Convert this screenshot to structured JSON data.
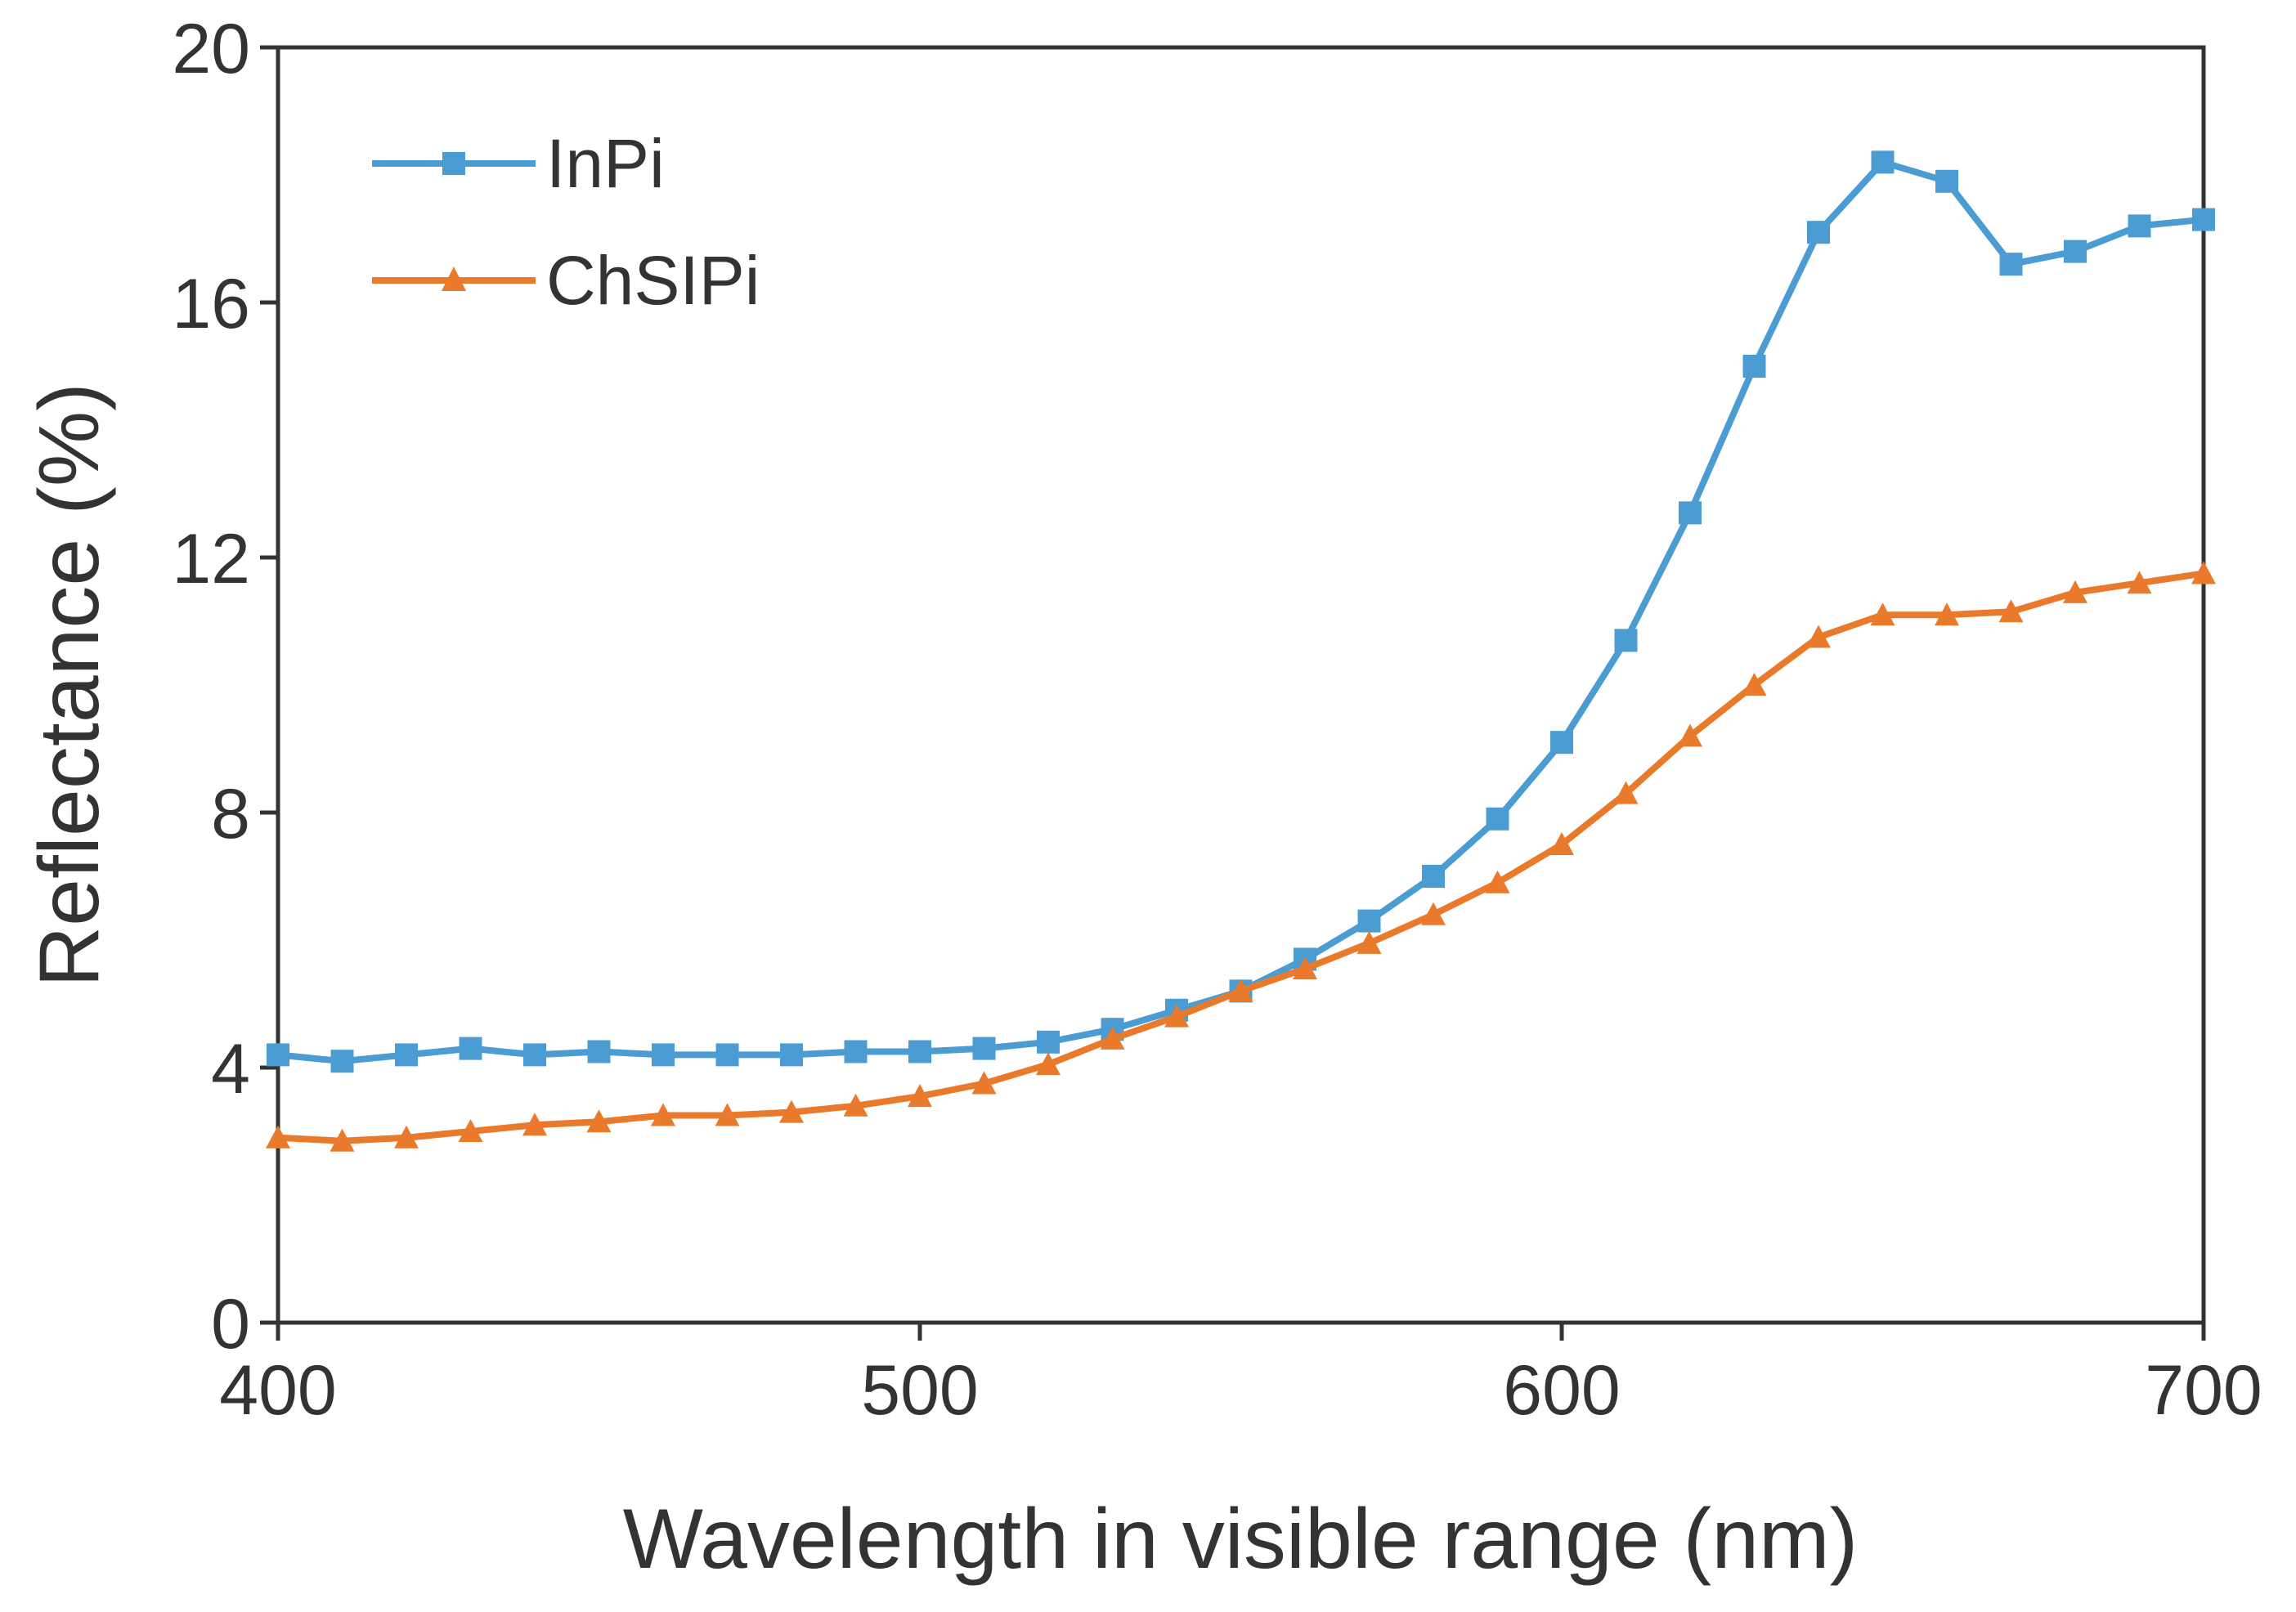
{
  "chart_data": {
    "type": "line",
    "title": "",
    "xlabel": "Wavelength in visible range (nm)",
    "ylabel": "Reflectance (%)",
    "xlim": [
      400,
      700
    ],
    "ylim": [
      0,
      20
    ],
    "xticks": [
      400,
      500,
      600,
      700
    ],
    "yticks": [
      0,
      4,
      8,
      12,
      16,
      20
    ],
    "xtick_labels": [
      "400",
      "500",
      "600",
      "700"
    ],
    "ytick_labels": [
      "0",
      "4",
      "8",
      "12",
      "16",
      "20"
    ],
    "grid": false,
    "legend_position": "top-left",
    "x": [
      400,
      410,
      420,
      430,
      440,
      450,
      460,
      470,
      480,
      490,
      500,
      510,
      520,
      530,
      540,
      550,
      560,
      570,
      580,
      590,
      600,
      610,
      620,
      630,
      640,
      650,
      660,
      670,
      680,
      690,
      700
    ],
    "series": [
      {
        "name": "InPi",
        "color": "#4b9cd3",
        "marker": "square",
        "values": [
          4.2,
          4.1,
          4.2,
          4.3,
          4.2,
          4.25,
          4.2,
          4.2,
          4.2,
          4.25,
          4.25,
          4.3,
          4.4,
          4.6,
          4.9,
          5.2,
          5.7,
          6.3,
          7.0,
          7.9,
          9.1,
          10.7,
          12.7,
          15.0,
          17.1,
          18.2,
          17.9,
          16.6,
          16.8,
          17.2,
          17.3
        ]
      },
      {
        "name": "ChSIPi",
        "color": "#e9792b",
        "marker": "triangle",
        "values": [
          2.9,
          2.85,
          2.9,
          3.0,
          3.1,
          3.15,
          3.25,
          3.25,
          3.3,
          3.4,
          3.55,
          3.75,
          4.05,
          4.45,
          4.8,
          5.2,
          5.55,
          5.95,
          6.4,
          6.9,
          7.5,
          8.3,
          9.2,
          10.0,
          10.75,
          11.1,
          11.1,
          11.15,
          11.45,
          11.6,
          11.75
        ]
      }
    ]
  }
}
